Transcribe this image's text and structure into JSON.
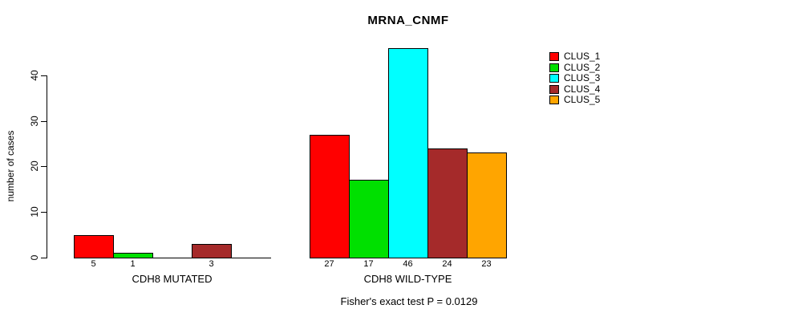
{
  "title": "MRNA_CNMF",
  "footer": "Fisher's exact test P = 0.0129",
  "y_axis": {
    "label": "number of cases",
    "ticks": [
      0,
      10,
      20,
      30,
      40
    ]
  },
  "legend": {
    "position": "top-right",
    "entries": [
      {
        "label": "CLUS_1",
        "color": "#FF0000"
      },
      {
        "label": "CLUS_2",
        "color": "#00E000"
      },
      {
        "label": "CLUS_3",
        "color": "#00FFFF"
      },
      {
        "label": "CLUS_4",
        "color": "#A52A2A"
      },
      {
        "label": "CLUS_5",
        "color": "#FFA500"
      }
    ]
  },
  "chart_data": {
    "type": "bar",
    "title": "MRNA_CNMF",
    "ylabel": "number of cases",
    "ylim": [
      0,
      46.5
    ],
    "yticks": [
      0,
      10,
      20,
      30,
      40
    ],
    "grid": false,
    "legend_position": "top-right",
    "categories": [
      "CDH8 MUTATED",
      "CDH8 WILD-TYPE"
    ],
    "series": [
      {
        "name": "CLUS_1",
        "color": "#FF0000",
        "values": [
          5,
          27
        ]
      },
      {
        "name": "CLUS_2",
        "color": "#00E000",
        "values": [
          1,
          17
        ]
      },
      {
        "name": "CLUS_3",
        "color": "#00FFFF",
        "values": [
          0,
          46
        ]
      },
      {
        "name": "CLUS_4",
        "color": "#A52A2A",
        "values": [
          3,
          24
        ]
      },
      {
        "name": "CLUS_5",
        "color": "#FFA500",
        "values": [
          0,
          23
        ]
      }
    ],
    "bar_value_labels": [
      [
        "5",
        "1",
        "",
        "3",
        ""
      ],
      [
        "27",
        "17",
        "46",
        "24",
        "23"
      ]
    ],
    "annotation": "Fisher's exact test P = 0.0129"
  }
}
